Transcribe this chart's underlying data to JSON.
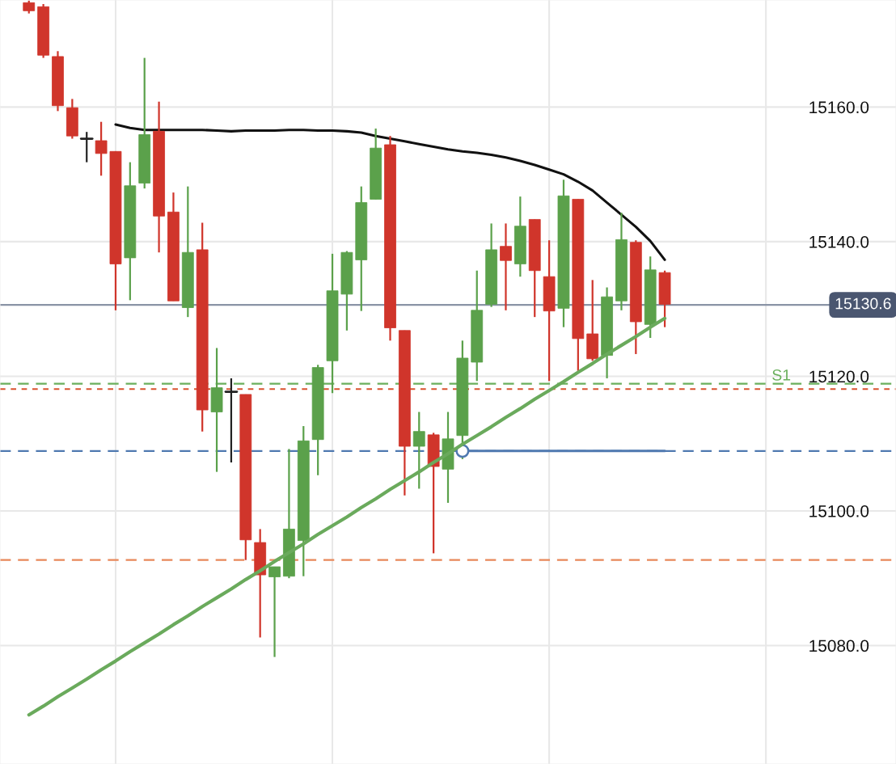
{
  "chart_data": {
    "type": "candlestick",
    "categories": [
      null,
      null,
      null,
      null,
      null,
      null,
      null,
      null,
      null,
      null,
      null,
      null,
      null,
      null,
      null,
      null,
      null,
      null,
      null,
      null,
      null,
      null,
      null,
      null,
      null,
      null,
      null,
      null,
      null,
      null,
      null,
      null,
      null,
      null,
      null,
      null,
      null,
      null,
      null,
      null,
      null,
      null,
      null,
      null,
      null
    ],
    "ohlc": [
      [
        15175.5,
        15175.8,
        15173.9,
        15174.3
      ],
      [
        15174.9,
        15175.3,
        15167.3,
        15167.7
      ],
      [
        15167.5,
        15168.3,
        15159.4,
        15160.2
      ],
      [
        15159.9,
        15161.2,
        15155.3,
        15155.7
      ],
      [
        15155.3,
        15156.3,
        15151.8,
        15155.3
      ],
      [
        15155.0,
        15157.8,
        15149.8,
        15153.1
      ],
      [
        15153.4,
        15153.4,
        15129.8,
        15136.7
      ],
      [
        15137.6,
        15151.8,
        15131.3,
        15148.3
      ],
      [
        15148.7,
        15167.3,
        15147.9,
        15155.9
      ],
      [
        15156.4,
        15160.8,
        15138.4,
        15143.8
      ],
      [
        15144.4,
        15147.3,
        15131.2,
        15131.2
      ],
      [
        15130.2,
        15148.2,
        15128.8,
        15138.4
      ],
      [
        15138.8,
        15142.8,
        15111.8,
        15115.0
      ],
      [
        15114.7,
        15124.2,
        15105.8,
        15118.3
      ],
      [
        15117.7,
        15119.7,
        15107.2,
        15117.7
      ],
      [
        15117.3,
        15117.3,
        15092.7,
        15095.7
      ],
      [
        15095.3,
        15097.3,
        15081.2,
        15090.5
      ],
      [
        15090.2,
        15091.7,
        15078.3,
        15091.7
      ],
      [
        15090.3,
        15109.2,
        15090.0,
        15097.3
      ],
      [
        15095.6,
        15112.6,
        15090.3,
        15110.4
      ],
      [
        15110.6,
        15121.7,
        15105.3,
        15121.3
      ],
      [
        15122.3,
        15138.2,
        15117.5,
        15132.7
      ],
      [
        15132.2,
        15138.6,
        15126.8,
        15138.4
      ],
      [
        15137.3,
        15148.2,
        15129.7,
        15145.8
      ],
      [
        15146.3,
        15156.8,
        15146.3,
        15153.9
      ],
      [
        15154.4,
        15155.7,
        15125.3,
        15127.2
      ],
      [
        15126.8,
        15126.8,
        15102.3,
        15109.6
      ],
      [
        15109.6,
        15114.7,
        15103.3,
        15111.8
      ],
      [
        15111.3,
        15111.6,
        15093.7,
        15106.6
      ],
      [
        15106.2,
        15114.7,
        15101.2,
        15110.7
      ],
      [
        15111.2,
        15125.3,
        15107.7,
        15122.7
      ],
      [
        15122.1,
        15135.7,
        15119.3,
        15129.8
      ],
      [
        15130.7,
        15142.7,
        15130.3,
        15138.8
      ],
      [
        15139.3,
        15142.7,
        15129.8,
        15137.2
      ],
      [
        15136.7,
        15146.7,
        15134.8,
        15142.3
      ],
      [
        15143.3,
        15143.3,
        15128.8,
        15135.7
      ],
      [
        15134.8,
        15140.2,
        15119.3,
        15129.7
      ],
      [
        15130.1,
        15149.2,
        15127.3,
        15146.8
      ],
      [
        15146.3,
        15146.3,
        15120.8,
        15125.6
      ],
      [
        15126.3,
        15134.3,
        15122.3,
        15122.6
      ],
      [
        15123.1,
        15133.2,
        15119.7,
        15131.8
      ],
      [
        15131.2,
        15144.3,
        15129.8,
        15140.3
      ],
      [
        15139.9,
        15140.2,
        15123.3,
        15128.1
      ],
      [
        15127.7,
        15137.8,
        15125.7,
        15135.8
      ],
      [
        15135.4,
        15135.7,
        15127.3,
        15130.7
      ]
    ],
    "colors": [
      "#d0352b",
      "#d0352b",
      "#d0352b",
      "#d0352b",
      "#222222",
      "#d0352b",
      "#d0352b",
      "#5ba14b",
      "#5ba14b",
      "#d0352b",
      "#d0352b",
      "#5ba14b",
      "#d0352b",
      "#5ba14b",
      "#222222",
      "#d0352b",
      "#d0352b",
      "#5ba14b",
      "#5ba14b",
      "#5ba14b",
      "#5ba14b",
      "#5ba14b",
      "#5ba14b",
      "#5ba14b",
      "#5ba14b",
      "#d0352b",
      "#d0352b",
      "#5ba14b",
      "#d0352b",
      "#5ba14b",
      "#5ba14b",
      "#5ba14b",
      "#5ba14b",
      "#d0352b",
      "#5ba14b",
      "#d0352b",
      "#d0352b",
      "#5ba14b",
      "#d0352b",
      "#d0352b",
      "#5ba14b",
      "#5ba14b",
      "#d0352b",
      "#5ba14b",
      "#d0352b"
    ],
    "series": [
      {
        "type": "line",
        "color": "#6aaa5c",
        "values": [
          15069.7,
          15071.0,
          15072.4,
          15073.7,
          15075.0,
          15076.4,
          15077.7,
          15079.1,
          15080.4,
          15081.7,
          15083.1,
          15084.4,
          15085.8,
          15087.1,
          15088.4,
          15089.8,
          15091.1,
          15092.5,
          15093.8,
          15095.1,
          15096.5,
          15097.8,
          15099.1,
          15100.5,
          15101.8,
          15103.2,
          15104.5,
          15105.8,
          15107.2,
          15108.5,
          15109.9,
          15111.2,
          15112.5,
          15113.9,
          15115.2,
          15116.6,
          15117.9,
          15119.2,
          15120.6,
          15121.9,
          15123.3,
          15124.6,
          15125.9,
          15127.3,
          15128.6
        ]
      },
      {
        "type": "line",
        "color": "#4f79b0",
        "values": [
          null,
          null,
          null,
          null,
          null,
          null,
          null,
          null,
          null,
          null,
          null,
          null,
          null,
          null,
          null,
          null,
          null,
          null,
          null,
          null,
          null,
          null,
          null,
          null,
          null,
          null,
          null,
          null,
          null,
          null,
          15108.9,
          15108.9,
          15108.9,
          15108.9,
          15108.9,
          15108.9,
          15108.9,
          15108.9,
          15108.9,
          15108.9,
          15108.9,
          15108.9,
          15108.9,
          15108.9,
          15108.9
        ]
      },
      {
        "type": "scatter",
        "color": "#4f79b0",
        "marker": "circle",
        "values": [
          null,
          null,
          null,
          null,
          null,
          null,
          null,
          null,
          null,
          null,
          null,
          null,
          null,
          null,
          null,
          null,
          null,
          null,
          null,
          null,
          null,
          null,
          null,
          null,
          null,
          null,
          null,
          null,
          null,
          null,
          15108.9,
          null,
          null,
          null,
          null,
          null,
          null,
          null,
          null,
          null,
          null,
          null,
          null,
          null,
          null
        ]
      },
      {
        "type": "line",
        "color": "#111111",
        "values": [
          null,
          null,
          null,
          null,
          null,
          null,
          15157.4,
          15156.9,
          15156.6,
          15156.6,
          15156.6,
          15156.6,
          15156.6,
          15156.5,
          15156.4,
          15156.5,
          15156.5,
          15156.5,
          15156.6,
          15156.6,
          15156.5,
          15156.5,
          15156.4,
          15156.2,
          15155.7,
          15155.3,
          15154.9,
          15154.5,
          15154.1,
          15153.7,
          15153.4,
          15153.2,
          15152.9,
          15152.5,
          15152.0,
          15151.4,
          15150.7,
          15150.0,
          15148.9,
          15147.6,
          15145.8,
          15144.0,
          15142.2,
          15140.1,
          15137.3
        ]
      }
    ],
    "ylim": [
      15062.4,
      15175.9
    ],
    "yticks": [
      {
        "value": 15080,
        "label": "15080.0"
      },
      {
        "value": 15100,
        "label": "15100.0"
      },
      {
        "value": 15120,
        "label": "15120.0"
      },
      {
        "value": 15140,
        "label": "15140.0"
      },
      {
        "value": 15160,
        "label": "15160.0"
      }
    ],
    "ref_lines": [
      {
        "axis": "y",
        "value": 15130.6,
        "label": "15130.6",
        "color": "#8a94a6",
        "line_style": "solid"
      },
      {
        "axis": "y",
        "value": 15118.9,
        "label": "S1",
        "color": "#6aaf5c",
        "line_style": "dashed"
      },
      {
        "axis": "y",
        "value": 15118.1,
        "color": "#d9532f",
        "line_style": "dotted"
      },
      {
        "axis": "y",
        "value": 15108.9,
        "color": "#4f79b0",
        "line_style": "dashed"
      },
      {
        "axis": "y",
        "value": 15092.7,
        "color": "#e8885a",
        "line_style": "dashed"
      }
    ],
    "grid": true
  }
}
